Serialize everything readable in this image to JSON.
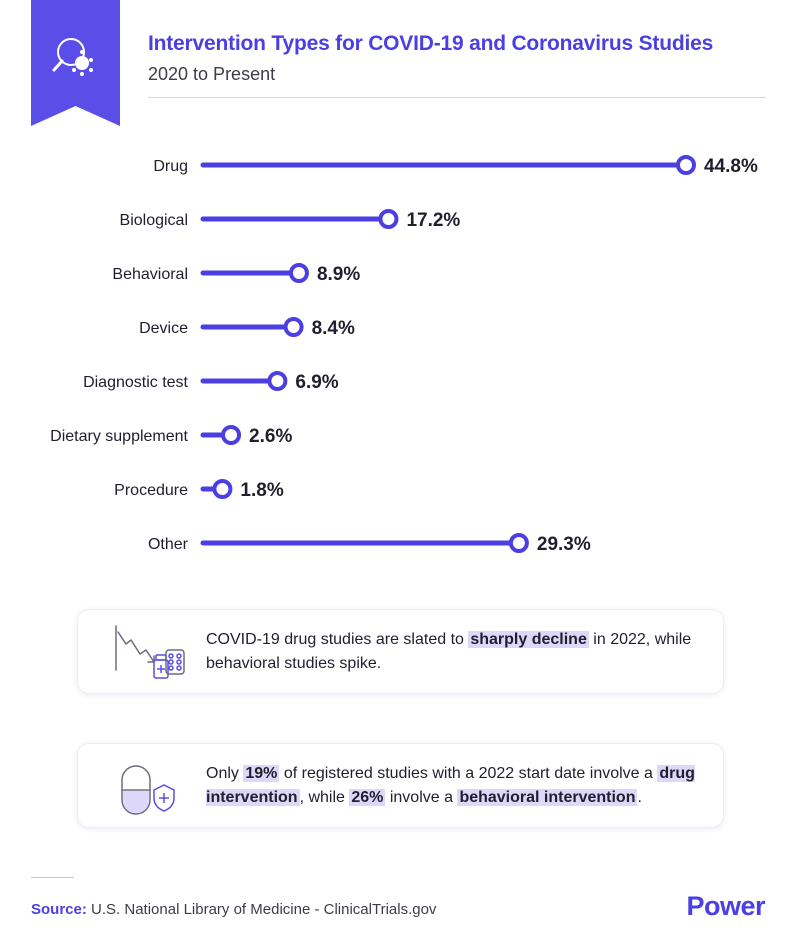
{
  "header": {
    "title": "Intervention Types for COVID-19 and Coronavirus Studies",
    "subtitle": "2020 to Present"
  },
  "colors": {
    "accent": "#4b3fe4",
    "highlight": "#ddd8fa",
    "text": "#1f1f2e"
  },
  "banner_icon": "magnifier-virus-icon",
  "chart_data": {
    "type": "bar",
    "style": "lollipop",
    "categories": [
      "Drug",
      "Biological",
      "Behavioral",
      "Device",
      "Diagnostic test",
      "Dietary supplement",
      "Procedure",
      "Other"
    ],
    "values": [
      44.8,
      17.2,
      8.9,
      8.4,
      6.9,
      2.6,
      1.8,
      29.3
    ],
    "value_labels": [
      "44.8%",
      "17.2%",
      "8.9%",
      "8.4%",
      "6.9%",
      "2.6%",
      "1.8%",
      "29.3%"
    ],
    "xlim": [
      0,
      44.8
    ],
    "grid": false,
    "legend": "none"
  },
  "callouts": [
    {
      "icon": "declining-chart-pills-icon",
      "parts": [
        {
          "text": "COVID-19 drug studies are slated to ",
          "hl": false
        },
        {
          "text": "sharply decline",
          "hl": true
        },
        {
          "text": " in 2022, while behavioral studies spike.",
          "hl": false
        }
      ]
    },
    {
      "icon": "capsule-shield-icon",
      "parts": [
        {
          "text": "Only ",
          "hl": false
        },
        {
          "text": "19%",
          "hl": true
        },
        {
          "text": " of registered studies with a 2022 start date involve a ",
          "hl": false
        },
        {
          "text": "drug intervention",
          "hl": true
        },
        {
          "text": ", while ",
          "hl": false
        },
        {
          "text": "26%",
          "hl": true
        },
        {
          "text": " involve a ",
          "hl": false
        },
        {
          "text": "behavioral intervention",
          "hl": true
        },
        {
          "text": ".",
          "hl": false
        }
      ]
    }
  ],
  "footer": {
    "source_label": "Source:",
    "source_text": " U.S. National Library of Medicine - ClinicalTrials.gov",
    "logo": "Power"
  }
}
